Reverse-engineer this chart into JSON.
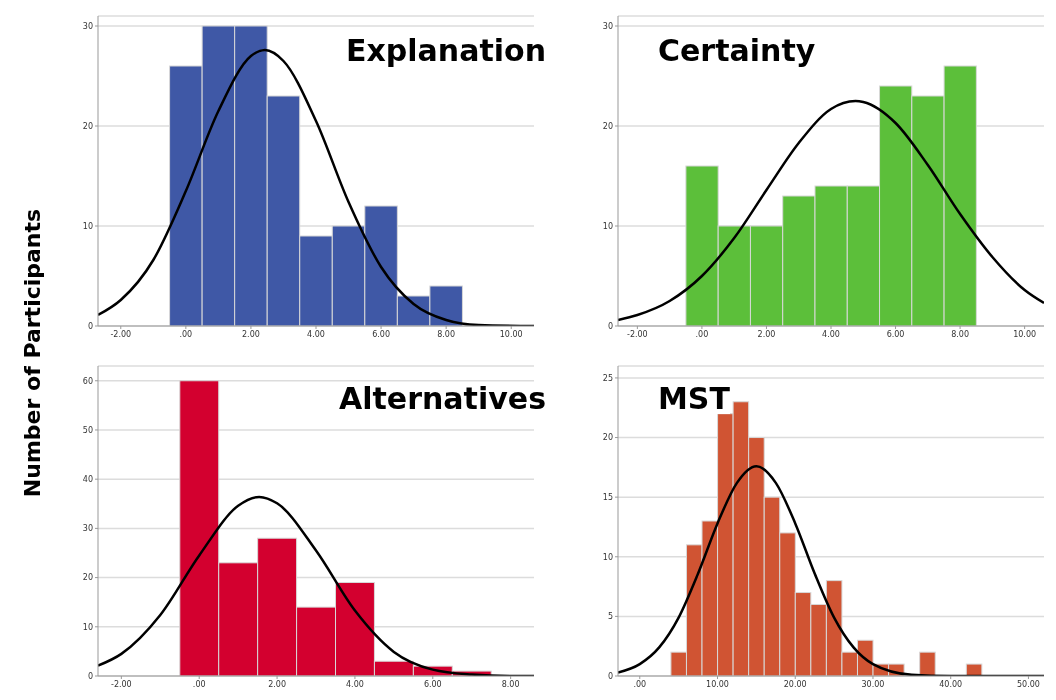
{
  "chart_data": [
    {
      "type": "histogram",
      "title": "Explanation",
      "ylabel": "Number of Participants",
      "bins": [
        -0.5,
        0.5,
        1.5,
        2.5,
        3.5,
        4.5,
        5.5,
        6.5,
        7.5,
        8.5
      ],
      "values": [
        26,
        30,
        30,
        23,
        9,
        10,
        12,
        3,
        4
      ],
      "color": "#3f58a6",
      "series": [
        {
          "type": "line",
          "color": "#000000",
          "x": [
            -2.7,
            -2,
            -1,
            0,
            1,
            2,
            2.43,
            3,
            4,
            5,
            6,
            7,
            8,
            9,
            10.7
          ],
          "values": [
            1.1,
            2.6,
            6.6,
            13.5,
            21.5,
            27.0,
            27.6,
            26.5,
            20.5,
            12.4,
            5.9,
            2.2,
            0.6,
            0.1,
            0
          ]
        }
      ],
      "xlim": [
        -2.7,
        10.7
      ],
      "xticks": [
        {
          "value": -2,
          "label": "-2.00"
        },
        {
          "value": 0,
          "label": ".00"
        },
        {
          "value": 2,
          "label": "2.00"
        },
        {
          "value": 4,
          "label": "4.00"
        },
        {
          "value": 6,
          "label": "6.00"
        },
        {
          "value": 8,
          "label": "8.00"
        },
        {
          "value": 10,
          "label": "10.00"
        }
      ],
      "ylim": [
        0,
        31
      ],
      "yticks": [
        0,
        10,
        20,
        30
      ],
      "grid": "y"
    },
    {
      "type": "histogram",
      "title": "Certainty",
      "bins": [
        -0.5,
        0.5,
        1.5,
        2.5,
        3.5,
        4.5,
        5.5,
        6.5,
        7.5,
        8.5
      ],
      "values": [
        16,
        10,
        10,
        13,
        14,
        14,
        24,
        23,
        26
      ],
      "color": "#5cbf3a",
      "series": [
        {
          "type": "line",
          "color": "#000000",
          "x": [
            -2.6,
            -2,
            -1,
            0,
            1,
            2,
            3,
            4,
            4.76,
            5,
            6,
            7,
            8,
            9,
            10,
            10.6
          ],
          "values": [
            0.6,
            1.1,
            2.5,
            5.0,
            8.8,
            13.6,
            18.3,
            21.7,
            22.5,
            22.4,
            20.3,
            16.1,
            11.2,
            6.9,
            3.6,
            2.3
          ]
        }
      ],
      "xlim": [
        -2.6,
        10.6
      ],
      "xticks": [
        {
          "value": -2,
          "label": "-2.00"
        },
        {
          "value": 0,
          "label": ".00"
        },
        {
          "value": 2,
          "label": "2.00"
        },
        {
          "value": 4,
          "label": "4.00"
        },
        {
          "value": 6,
          "label": "6.00"
        },
        {
          "value": 8,
          "label": "8.00"
        },
        {
          "value": 10,
          "label": "10.00"
        }
      ],
      "ylim": [
        0,
        31
      ],
      "yticks": [
        0,
        10,
        20,
        30
      ],
      "grid": "y"
    },
    {
      "type": "histogram",
      "title": "Alternatives",
      "bins": [
        -0.5,
        0.5,
        1.5,
        2.5,
        3.5,
        4.5,
        5.5,
        6.5,
        7.5
      ],
      "values": [
        60,
        23,
        28,
        14,
        19,
        3,
        2,
        1
      ],
      "color": "#d3002f",
      "series": [
        {
          "type": "line",
          "color": "#000000",
          "x": [
            -2.6,
            -2,
            -1,
            0,
            1,
            1.54,
            2,
            3,
            4,
            5,
            6,
            7,
            8,
            8.6
          ],
          "values": [
            2.1,
            4.5,
            12.4,
            24.5,
            34.6,
            36.4,
            35.1,
            25.5,
            13.3,
            4.9,
            1.3,
            0.3,
            0,
            0
          ]
        }
      ],
      "xlim": [
        -2.6,
        8.6
      ],
      "xticks": [
        {
          "value": -2,
          "label": "-2.00"
        },
        {
          "value": 0,
          "label": ".00"
        },
        {
          "value": 2,
          "label": "2.00"
        },
        {
          "value": 4,
          "label": "4.00"
        },
        {
          "value": 6,
          "label": "6.00"
        },
        {
          "value": 8,
          "label": "8.00"
        }
      ],
      "ylim": [
        0,
        63
      ],
      "yticks": [
        0,
        10,
        20,
        30,
        40,
        50,
        60
      ],
      "grid": "y"
    },
    {
      "type": "histogram",
      "title": "MST",
      "bins": [
        4,
        6,
        8,
        10,
        12,
        14,
        16,
        18,
        20,
        22,
        24,
        26,
        28,
        30,
        32,
        34,
        36,
        38,
        40,
        42,
        44
      ],
      "values": [
        2,
        11,
        13,
        22,
        23,
        20,
        15,
        12,
        7,
        6,
        8,
        2,
        3,
        1,
        1,
        0,
        2,
        0,
        0,
        1
      ],
      "color": "#d05433",
      "series": [
        {
          "type": "line",
          "color": "#000000",
          "x": [
            -2.8,
            0,
            2.5,
            5,
            7.5,
            10,
            12.5,
            15,
            17.5,
            20,
            22.5,
            25,
            27.5,
            30,
            35,
            40,
            52
          ],
          "values": [
            0.3,
            1.0,
            2.4,
            4.9,
            8.6,
            12.8,
            16.2,
            17.6,
            16.2,
            12.8,
            8.6,
            4.9,
            2.4,
            1.0,
            0.1,
            0,
            0
          ]
        }
      ],
      "xlim": [
        -2.8,
        52
      ],
      "xticks": [
        {
          "value": 0,
          "label": ".00"
        },
        {
          "value": 10,
          "label": "10.00"
        },
        {
          "value": 20,
          "label": "20.00"
        },
        {
          "value": 30,
          "label": "30.00"
        },
        {
          "value": 40,
          "label": "40.00"
        },
        {
          "value": 50,
          "label": "50.00"
        }
      ],
      "ylim": [
        0,
        26
      ],
      "yticks": [
        0,
        5,
        10,
        15,
        20,
        25
      ],
      "grid": "y"
    }
  ]
}
